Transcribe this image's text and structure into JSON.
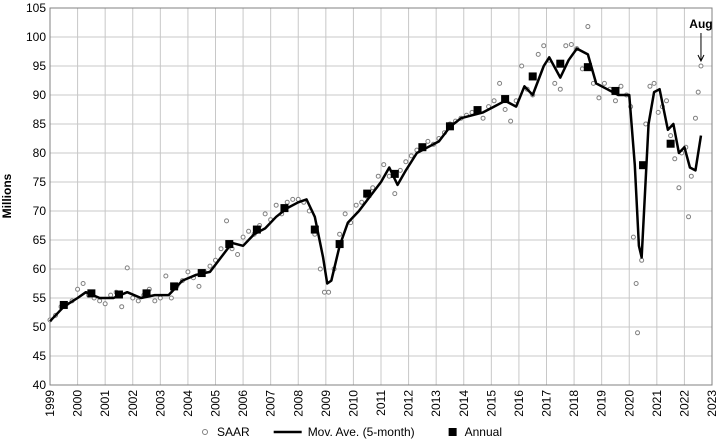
{
  "chart_data": {
    "type": "combo",
    "y_label": "Millions",
    "annotation": "Aug",
    "xlim": [
      1999,
      2023
    ],
    "xticks": [
      1999,
      2000,
      2001,
      2002,
      2003,
      2004,
      2005,
      2006,
      2007,
      2008,
      2009,
      2010,
      2011,
      2012,
      2013,
      2014,
      2015,
      2016,
      2017,
      2018,
      2019,
      2020,
      2021,
      2022,
      2023
    ],
    "ylim": [
      40,
      105
    ],
    "yticks": [
      40,
      45,
      50,
      55,
      60,
      65,
      70,
      75,
      80,
      85,
      90,
      95,
      100,
      105
    ],
    "grid": true,
    "series": [
      {
        "name": "SAAR",
        "type": "scatter",
        "color": "#808080",
        "x": [
          1999.0,
          1999.2,
          1999.4,
          1999.6,
          1999.8,
          2000.0,
          2000.2,
          2000.4,
          2000.6,
          2000.8,
          2001.0,
          2001.2,
          2001.4,
          2001.6,
          2001.8,
          2002.0,
          2002.2,
          2002.4,
          2002.6,
          2002.8,
          2003.0,
          2003.2,
          2003.4,
          2003.6,
          2003.8,
          2004.0,
          2004.2,
          2004.4,
          2004.6,
          2004.8,
          2005.0,
          2005.2,
          2005.4,
          2005.6,
          2005.8,
          2006.0,
          2006.2,
          2006.4,
          2006.6,
          2006.8,
          2007.0,
          2007.2,
          2007.4,
          2007.6,
          2007.8,
          2008.0,
          2008.2,
          2008.4,
          2008.6,
          2008.8,
          2008.95,
          2009.1,
          2009.3,
          2009.5,
          2009.7,
          2009.9,
          2010.1,
          2010.3,
          2010.5,
          2010.7,
          2010.9,
          2011.1,
          2011.3,
          2011.5,
          2011.7,
          2011.9,
          2012.1,
          2012.3,
          2012.5,
          2012.7,
          2012.9,
          2013.1,
          2013.3,
          2013.5,
          2013.7,
          2013.9,
          2014.1,
          2014.3,
          2014.5,
          2014.7,
          2014.9,
          2015.1,
          2015.3,
          2015.5,
          2015.7,
          2015.9,
          2016.1,
          2016.3,
          2016.5,
          2016.7,
          2016.9,
          2017.1,
          2017.3,
          2017.5,
          2017.7,
          2017.9,
          2018.1,
          2018.3,
          2018.5,
          2018.7,
          2018.9,
          2019.1,
          2019.3,
          2019.5,
          2019.7,
          2019.9,
          2020.05,
          2020.15,
          2020.25,
          2020.3,
          2020.45,
          2020.6,
          2020.75,
          2020.9,
          2021.05,
          2021.2,
          2021.35,
          2021.5,
          2021.65,
          2021.8,
          2021.9,
          2022.05,
          2022.15,
          2022.25,
          2022.4,
          2022.5,
          2022.6
        ],
        "values": [
          51.2,
          52,
          53.5,
          54,
          54.5,
          56.5,
          57.5,
          55.5,
          55,
          54.5,
          54,
          55.5,
          56,
          53.5,
          60.2,
          55,
          54.5,
          55.5,
          56.5,
          54.5,
          55,
          58.8,
          55,
          57,
          58,
          59.5,
          58.5,
          57,
          59.5,
          60.5,
          61.5,
          63.5,
          68.3,
          63.5,
          62.5,
          65.5,
          66.5,
          66,
          67.5,
          69.5,
          68.5,
          71,
          69.5,
          71.5,
          72,
          72,
          71.5,
          70,
          66,
          60,
          56,
          56,
          60,
          66,
          69.5,
          68,
          71,
          71.5,
          72.5,
          74,
          76,
          78,
          76,
          73,
          77,
          78.5,
          79.5,
          80.5,
          81,
          82,
          81.5,
          82.5,
          83.5,
          85,
          85.5,
          86,
          86.5,
          87,
          87.5,
          86,
          88,
          89,
          92,
          87.5,
          85.5,
          89,
          95,
          91,
          90,
          97,
          98.5,
          96,
          92,
          91,
          98.5,
          98.7,
          98,
          94.5,
          101.8,
          92,
          89.5,
          92,
          91,
          89,
          91.5,
          90,
          88,
          65.5,
          57.5,
          49,
          61.5,
          85,
          91.5,
          92,
          87,
          88,
          89,
          83,
          79,
          74,
          80,
          81,
          69,
          76,
          86,
          90.5,
          95
        ]
      },
      {
        "name": "Mov. Ave. (5-month)",
        "type": "line",
        "color": "#000000",
        "x": [
          1999.0,
          1999.5,
          2000.0,
          2000.3,
          2000.8,
          2001.3,
          2001.8,
          2002.3,
          2002.8,
          2003.3,
          2003.8,
          2004.3,
          2004.8,
          2005.2,
          2005.6,
          2006.0,
          2006.4,
          2006.8,
          2007.2,
          2007.6,
          2008.0,
          2008.3,
          2008.6,
          2008.9,
          2009.05,
          2009.2,
          2009.5,
          2009.8,
          2010.2,
          2010.6,
          2011.0,
          2011.3,
          2011.6,
          2011.9,
          2012.3,
          2012.7,
          2013.1,
          2013.5,
          2013.9,
          2014.3,
          2014.7,
          2015.1,
          2015.5,
          2015.9,
          2016.2,
          2016.5,
          2016.9,
          2017.1,
          2017.5,
          2017.8,
          2018.1,
          2018.5,
          2018.8,
          2019.2,
          2019.6,
          2020.0,
          2020.2,
          2020.35,
          2020.45,
          2020.7,
          2020.9,
          2021.1,
          2021.4,
          2021.6,
          2021.8,
          2022.0,
          2022.2,
          2022.4,
          2022.6
        ],
        "values": [
          51,
          53.5,
          55,
          56,
          55,
          55,
          56,
          55,
          55.5,
          55.5,
          58,
          59,
          59.5,
          62,
          64.5,
          64,
          66,
          67,
          69,
          70.5,
          71.5,
          72,
          69,
          62,
          57.5,
          58,
          64,
          68,
          70,
          72.5,
          75,
          77.5,
          74.5,
          77,
          80,
          81,
          82,
          84.5,
          86,
          86.5,
          87,
          88,
          89,
          88,
          91.5,
          90,
          95,
          96.5,
          93,
          96,
          98,
          97,
          92,
          91,
          90,
          90,
          78,
          64,
          62,
          85,
          90.5,
          91,
          84,
          85,
          80,
          81,
          77.5,
          77,
          83
        ]
      },
      {
        "name": "Annual",
        "type": "marker",
        "color": "#000000",
        "x": [
          1999.5,
          2000.5,
          2001.5,
          2002.5,
          2003.5,
          2004.5,
          2005.5,
          2006.5,
          2007.5,
          2008.6,
          2009.5,
          2010.5,
          2011.5,
          2012.5,
          2013.5,
          2014.5,
          2015.5,
          2016.5,
          2017.5,
          2018.5,
          2019.5,
          2020.5,
          2021.5
        ],
        "values": [
          53.8,
          55.8,
          55.6,
          55.8,
          57.0,
          59.3,
          64.3,
          66.8,
          70.5,
          66.8,
          64.3,
          73.0,
          76.4,
          81.0,
          84.6,
          87.4,
          89.3,
          93.2,
          95.4,
          94.8,
          90.7,
          77.9,
          81.6
        ]
      }
    ]
  }
}
